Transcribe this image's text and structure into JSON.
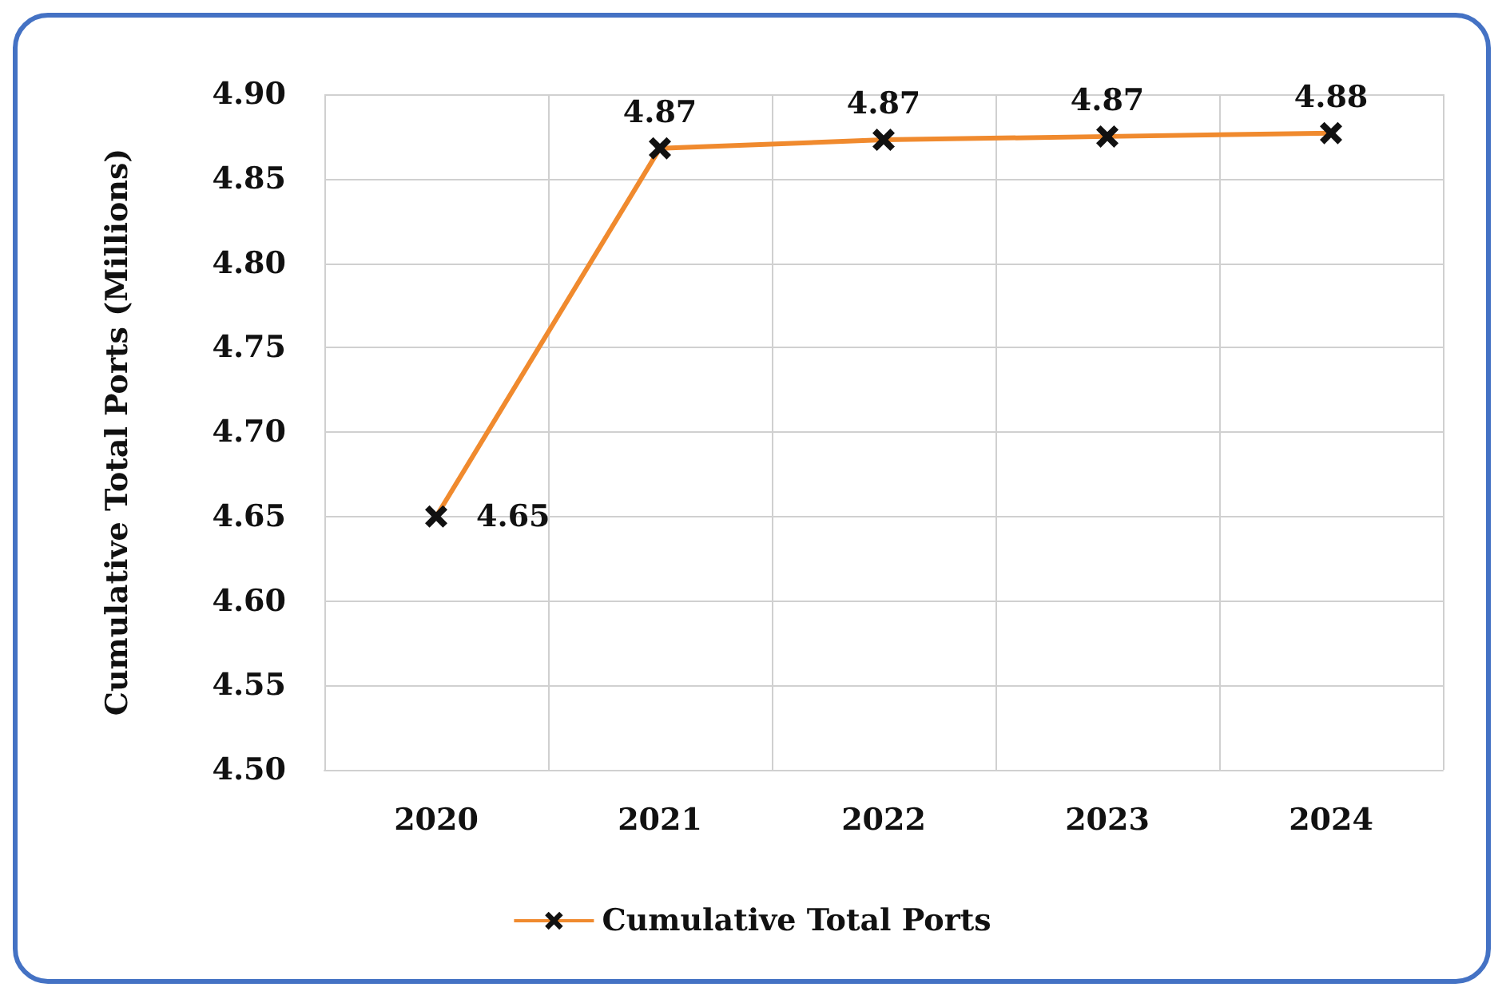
{
  "chart_data": {
    "type": "line",
    "ylabel": "Cumulative Total Ports (Millions)",
    "categories": [
      "2020",
      "2021",
      "2022",
      "2023",
      "2024"
    ],
    "series": [
      {
        "name": "Cumulative Total Ports",
        "color": "#f08a2e",
        "values": [
          4.65,
          4.868,
          4.873,
          4.875,
          4.877
        ],
        "value_labels": [
          "4.65",
          "4.87",
          "4.87",
          "4.87",
          "4.88"
        ]
      }
    ],
    "ylim": [
      4.5,
      4.9
    ],
    "yticks": [
      {
        "value": 4.5,
        "label": "4.50"
      },
      4.55,
      {
        "value": 4.6,
        "label": "4.60"
      },
      4.65,
      {
        "value": 4.7,
        "label": "4.70"
      },
      4.75,
      {
        "value": 4.8,
        "label": "4.80"
      },
      4.85,
      {
        "value": 4.9,
        "label": "4.90"
      }
    ],
    "grid": true,
    "legend": "bottom",
    "marker": "cross",
    "line_style": "solid"
  }
}
